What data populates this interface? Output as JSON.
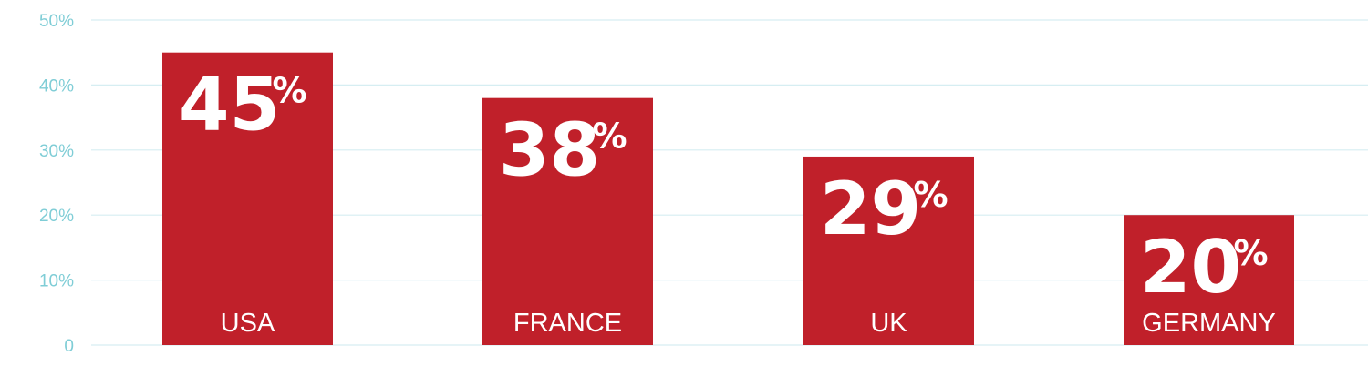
{
  "chart_data": {
    "type": "bar",
    "title": "",
    "xlabel": "",
    "ylabel": "",
    "categories": [
      "USA",
      "FRANCE",
      "UK",
      "GERMANY"
    ],
    "values": [
      45,
      38,
      29,
      20
    ],
    "value_labels": [
      "45",
      "38",
      "29",
      "20"
    ],
    "value_suffix": "%",
    "ylim": [
      0,
      50
    ],
    "yticks": [
      0,
      10,
      20,
      30,
      40,
      50
    ],
    "ytick_labels": [
      "0",
      "10%",
      "20%",
      "30%",
      "40%",
      "50%"
    ],
    "grid": true,
    "legend": "none",
    "colors": {
      "bar": "#c0202a",
      "grid": "#d6eef2",
      "tick_text": "#7fcdd6",
      "label_text": "#ffffff"
    }
  }
}
